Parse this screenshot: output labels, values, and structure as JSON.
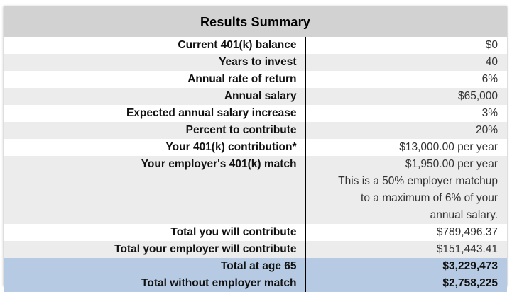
{
  "summary": {
    "title": "Results Summary",
    "rows": [
      {
        "label": "Current 401(k) balance",
        "value": "$0"
      },
      {
        "label": "Years to invest",
        "value": "40"
      },
      {
        "label": "Annual rate of return",
        "value": "6%"
      },
      {
        "label": "Annual salary",
        "value": "$65,000"
      },
      {
        "label": "Expected annual salary increase",
        "value": "3%"
      },
      {
        "label": "Percent to contribute",
        "value": "20%"
      },
      {
        "label": "Your 401(k) contribution*",
        "value": "$13,000.00 per year"
      },
      {
        "label": "Your employer's 401(k) match",
        "value_lines": [
          "$1,950.00 per year",
          "This is a 50% employer matchup",
          "to a maximum of 6% of your",
          "annual salary."
        ]
      },
      {
        "label": "Total you will contribute",
        "value": "$789,496.37"
      },
      {
        "label": "Total your employer will contribute",
        "value": "$151,443.41"
      },
      {
        "label": "Total at age 65",
        "value": "$3,229,473"
      },
      {
        "label": "Total without employer match",
        "value": "$2,758,225"
      }
    ]
  },
  "colors": {
    "title_bg": "#d2d2d2",
    "row_gray": "#ececec",
    "row_white": "#ffffff",
    "highlight": "#b6cbe3"
  }
}
